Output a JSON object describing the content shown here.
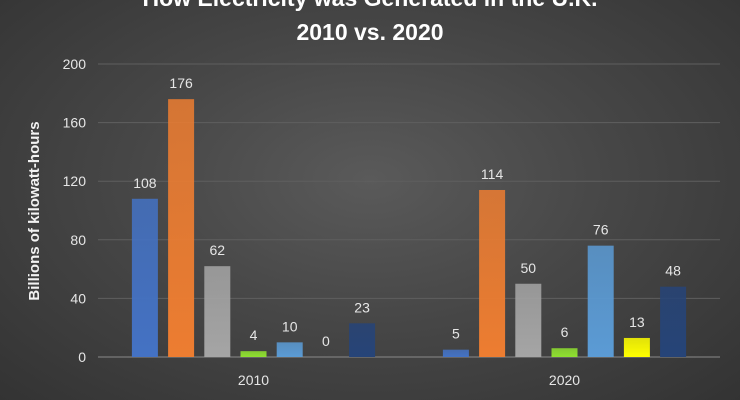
{
  "chart_data": {
    "type": "bar",
    "title": "How Electricity was Generated in the U.K.",
    "subtitle": "2010 vs. 2020",
    "xlabel": "",
    "ylabel": "Billions of kilowatt-hours",
    "ylim": [
      0,
      200
    ],
    "yticks": [
      0,
      40,
      80,
      120,
      160,
      200
    ],
    "grid": true,
    "legend": "none",
    "categories": [
      "2010",
      "2020"
    ],
    "series": [
      {
        "values": [
          108,
          5
        ],
        "color": "#4472c4"
      },
      {
        "values": [
          176,
          114
        ],
        "color": "#ed7d31"
      },
      {
        "values": [
          62,
          50
        ],
        "color": "#a5a5a5"
      },
      {
        "values": [
          4,
          6
        ],
        "color": "#8fe030"
      },
      {
        "values": [
          10,
          76
        ],
        "color": "#5b9bd5"
      },
      {
        "values": [
          0,
          13
        ],
        "color": "#ffff00"
      },
      {
        "values": [
          23,
          48
        ],
        "color": "#264478"
      }
    ]
  }
}
